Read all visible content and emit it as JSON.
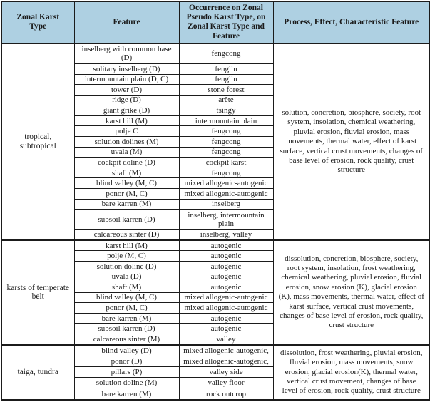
{
  "table": {
    "header_bg": "#aed0e2",
    "border_color": "#1b1b1b",
    "headers": [
      "Zonal Karst Type",
      "Feature",
      "Occurrence on Zonal Pseudo Karst Type, on Zonal Karst Type and Feature",
      "Process, Effect, Characteristic Feature"
    ],
    "sections": [
      {
        "zone": "tropical, subtropical",
        "process": "solution, concretion, biosphere, society, root system, insolation, chemical weathering, pluvial erosion, fluvial erosion, mass movements, thermal water, effect of karst surface, vertical crust movements, changes of base level of erosion, rock quality, crust structure",
        "rows": [
          {
            "feature": "inselberg with common base (D)",
            "occurrence": "fengcong"
          },
          {
            "feature": "solitary inselberg (D)",
            "occurrence": "fenglin"
          },
          {
            "feature": "intermountain plain (D, C)",
            "occurrence": "fenglin"
          },
          {
            "feature": "tower (D)",
            "occurrence": "stone forest"
          },
          {
            "feature": "ridge (D)",
            "occurrence": "arête"
          },
          {
            "feature": "giant grike (D)",
            "occurrence": "tsingy"
          },
          {
            "feature": "karst hill (M)",
            "occurrence": "intermountain plain"
          },
          {
            "feature": "polje C",
            "occurrence": "fengcong"
          },
          {
            "feature": "solution dolines (M)",
            "occurrence": "fengcong"
          },
          {
            "feature": "uvala (M)",
            "occurrence": "fengcong"
          },
          {
            "feature": "cockpit doline (D)",
            "occurrence": "cockpit karst"
          },
          {
            "feature": "shaft (M)",
            "occurrence": "fengcong"
          },
          {
            "feature": "blind valley (M, C)",
            "occurrence": "mixed allogenic-autogenic"
          },
          {
            "feature": "ponor (M, C)",
            "occurrence": "mixed allogenic-autogenic"
          },
          {
            "feature": "bare karren (M)",
            "occurrence": "inselberg"
          },
          {
            "feature": "subsoil karren (D)",
            "occurrence": "inselberg, intermountain plain"
          },
          {
            "feature": "calcareous sinter (D)",
            "occurrence": "inselberg, valley"
          }
        ]
      },
      {
        "zone": "karsts of temperate belt",
        "process": "dissolution, concretion, biosphere, society, root system, insolation, frost weathering, chemical weathering, pluvial erosion, fluvial erosion, snow erosion (K), glacial erosion (K), mass movements, thermal water, effect of karst surface, vertical crust movements,  changes of base level of erosion, rock quality, crust structure",
        "rows": [
          {
            "feature": "karst hill (M)",
            "occurrence": "autogenic"
          },
          {
            "feature": "polje  (M, C)",
            "occurrence": "autogenic"
          },
          {
            "feature": "solution doline (D)",
            "occurrence": "autogenic"
          },
          {
            "feature": "uvala (D)",
            "occurrence": "autogenic"
          },
          {
            "feature": "shaft (M)",
            "occurrence": "autogenic"
          },
          {
            "feature": "blind valley (M, C)",
            "occurrence": "mixed allogenic-autogenic"
          },
          {
            "feature": "ponor (M, C)",
            "occurrence": "mixed allogenic-autogenic"
          },
          {
            "feature": "bare karren (M)",
            "occurrence": "autogenic"
          },
          {
            "feature": "subsoil karren (D)",
            "occurrence": "autogenic"
          },
          {
            "feature": "calcareous sinter (M)",
            "occurrence": "valley"
          }
        ]
      },
      {
        "zone": "taiga, tundra",
        "process": "dissolution, frost weathering, pluvial erosion, fluvial erosion, mass movements, snow erosion, glacial erosion(K), thermal water, vertical crust movement, changes of base level of erosion, rock quality, crust structure",
        "rows": [
          {
            "feature": "blind valley (D)",
            "occurrence": "mixed allogenic-autogenic,"
          },
          {
            "feature": "ponor (D)",
            "occurrence": "mixed allogenic-autogenic,"
          },
          {
            "feature": "pillars (P)",
            "occurrence": "valley side"
          },
          {
            "feature": "solution doline (M)",
            "occurrence": "valley floor"
          },
          {
            "feature": "bare karren (M)",
            "occurrence": "rock outcrop"
          }
        ]
      }
    ]
  }
}
